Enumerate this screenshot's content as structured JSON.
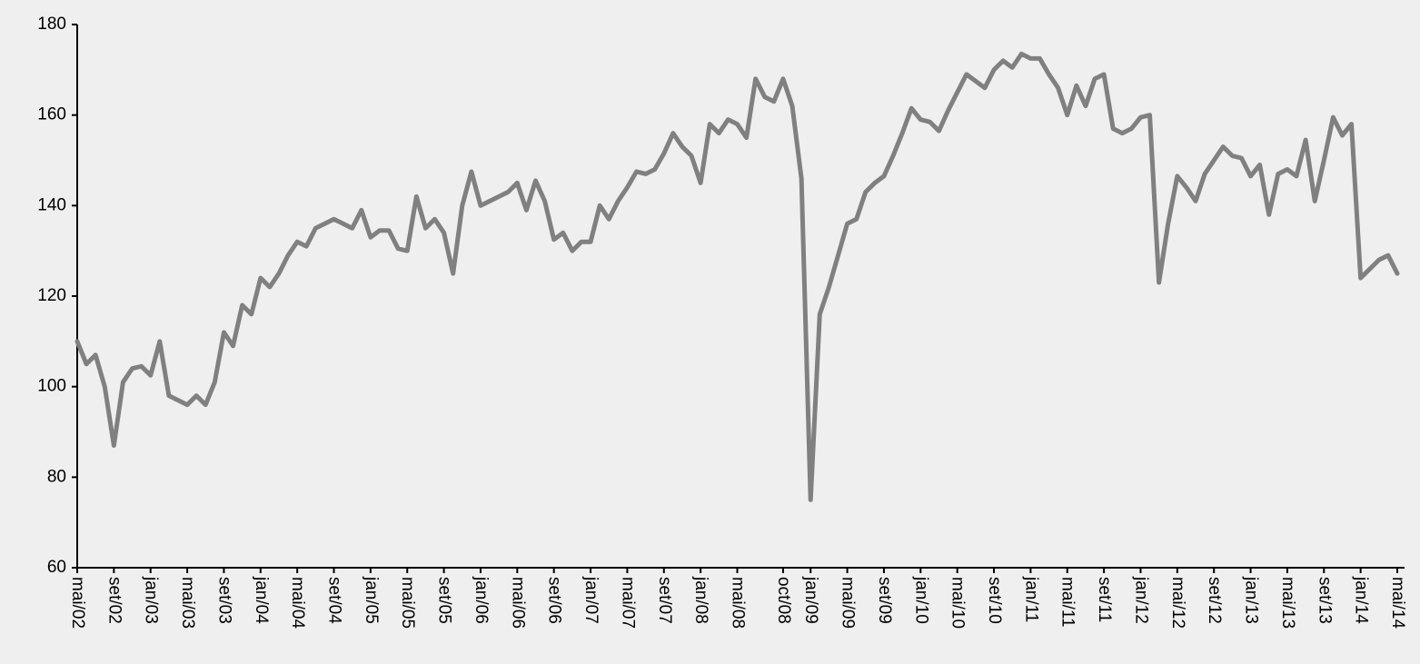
{
  "chart_data": {
    "type": "line",
    "categories": [
      "mai/02",
      null,
      null,
      null,
      "set/02",
      null,
      null,
      null,
      "jan/03",
      null,
      null,
      null,
      "mai/03",
      null,
      null,
      null,
      "set/03",
      null,
      null,
      null,
      "jan/04",
      null,
      null,
      null,
      "mai/04",
      null,
      null,
      null,
      "set/04",
      null,
      null,
      null,
      "jan/05",
      null,
      null,
      null,
      "mai/05",
      null,
      null,
      null,
      "set/05",
      null,
      null,
      null,
      "jan/06",
      null,
      null,
      null,
      "mai/06",
      null,
      null,
      null,
      "set/06",
      null,
      null,
      null,
      "jan/07",
      null,
      null,
      null,
      "mai/07",
      null,
      null,
      null,
      "set/07",
      null,
      null,
      null,
      "jan/08",
      null,
      null,
      null,
      "mai/08",
      null,
      null,
      null,
      null,
      "oct/08",
      null,
      null,
      "jan/09",
      null,
      null,
      null,
      "mai/09",
      null,
      null,
      null,
      "set/09",
      null,
      null,
      null,
      "jan/10",
      null,
      null,
      null,
      "mai/10",
      null,
      null,
      null,
      "set/10",
      null,
      null,
      null,
      "jan/11",
      null,
      null,
      null,
      "mai/11",
      null,
      null,
      null,
      "set/11",
      null,
      null,
      null,
      "jan/12",
      null,
      null,
      null,
      "mai/12",
      null,
      null,
      null,
      "set/12",
      null,
      null,
      null,
      "jan/13",
      null,
      null,
      null,
      "mai/13",
      null,
      null,
      null,
      "set/13",
      null,
      null,
      null,
      "jan/14",
      null,
      null,
      null,
      "mai/14"
    ],
    "values": [
      110,
      105,
      107,
      100,
      87,
      101,
      104,
      104.5,
      102.5,
      110,
      98,
      97,
      96,
      98,
      96,
      101,
      112,
      109,
      118,
      116,
      124,
      122,
      125,
      129,
      132,
      131,
      135,
      136,
      137,
      136,
      135,
      139,
      133,
      134.5,
      134.5,
      130.5,
      130,
      142,
      135,
      137,
      134,
      125,
      140,
      147.5,
      140,
      141,
      142,
      143,
      145,
      139,
      145.5,
      141,
      132.5,
      134,
      130,
      132,
      132,
      140,
      137,
      141,
      144,
      147.5,
      147,
      148,
      151.5,
      156,
      153,
      151,
      145,
      158,
      156,
      159,
      158,
      155,
      168,
      164,
      163,
      168,
      162,
      146,
      75,
      116,
      122,
      129,
      136,
      137,
      143,
      145,
      146.5,
      151,
      156,
      161.5,
      159,
      158.5,
      156.5,
      161,
      165,
      169,
      167.5,
      166,
      170,
      172,
      170.5,
      173.5,
      172.5,
      172.5,
      169,
      166,
      160,
      166.5,
      162,
      168,
      169,
      157,
      156,
      157,
      159.5,
      160,
      123,
      136,
      146.5,
      144,
      141,
      147,
      150,
      153,
      151,
      150.5,
      146.5,
      149,
      138,
      147,
      148,
      146.5,
      154.5,
      141,
      150,
      159.5,
      155.5,
      158,
      124,
      126,
      128,
      129,
      125
    ],
    "color": "#808080",
    "ylim": [
      60,
      180
    ],
    "yticks": [
      60,
      80,
      100,
      120,
      140,
      160,
      180
    ]
  }
}
